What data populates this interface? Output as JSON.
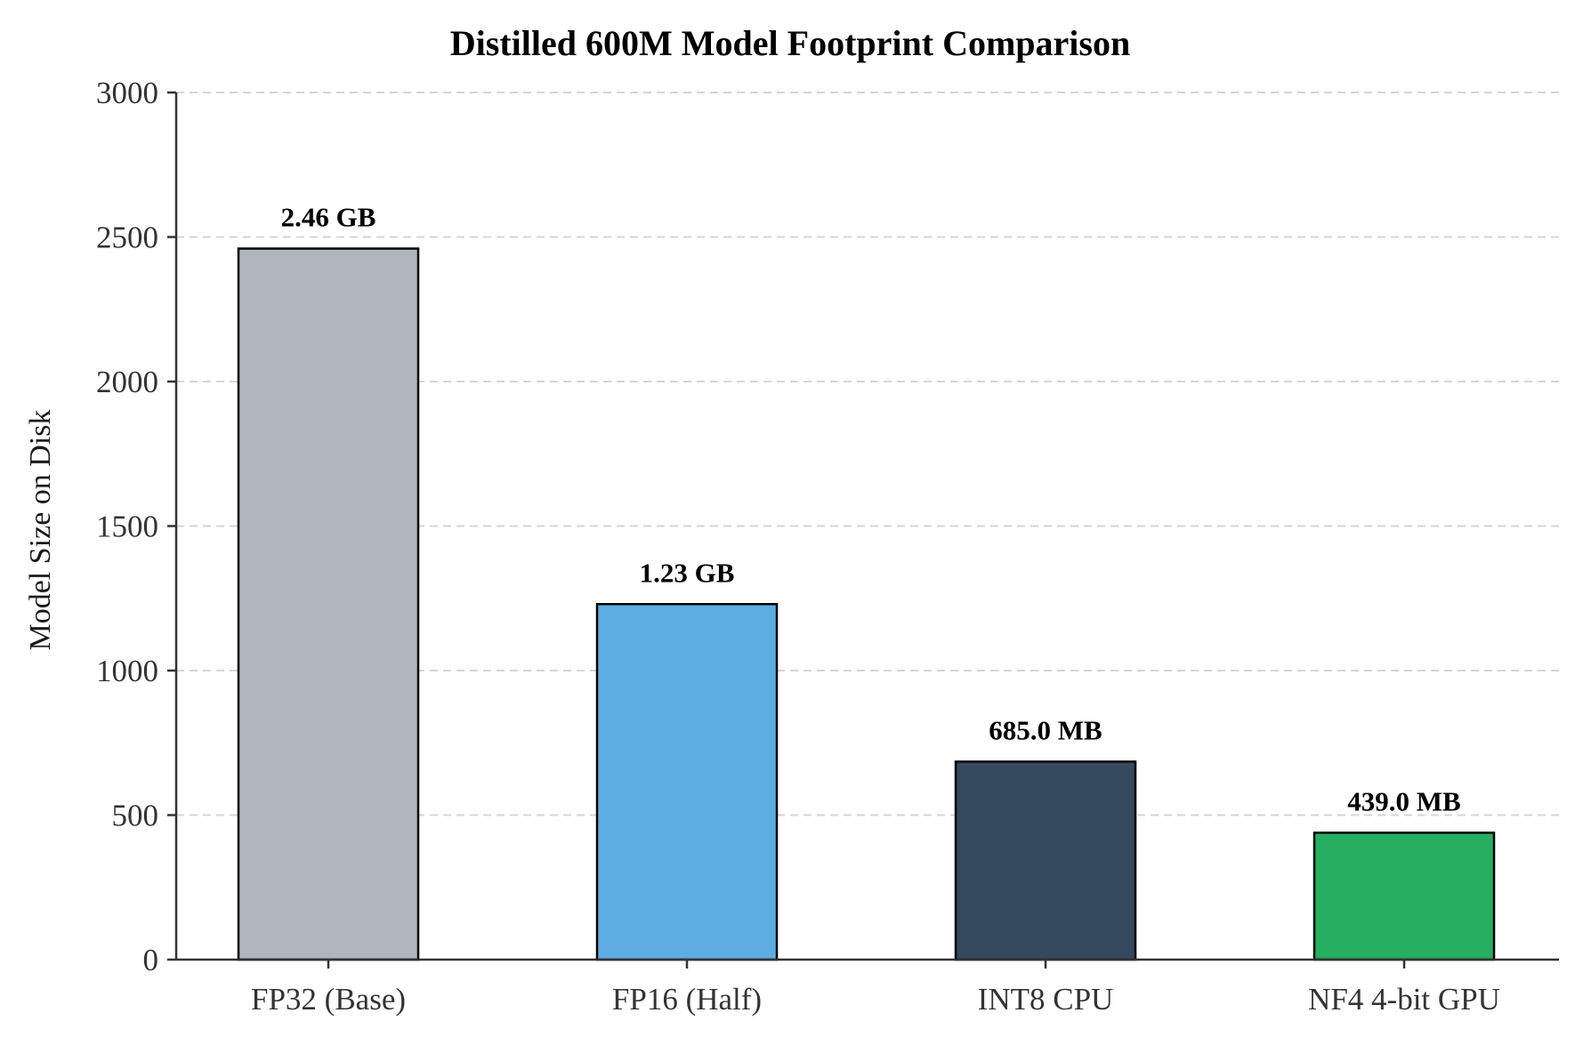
{
  "chart_data": {
    "type": "bar",
    "title": "Distilled 600M Model Footprint Comparison",
    "xlabel": "",
    "ylabel": "Model Size on Disk",
    "categories": [
      "FP32 (Base)",
      "FP16 (Half)",
      "INT8 CPU",
      "NF4 4-bit GPU"
    ],
    "values": [
      2460,
      1230,
      685,
      439
    ],
    "data_labels": [
      "2.46 GB",
      "1.23 GB",
      "685.0 MB",
      "439.0 MB"
    ],
    "colors": [
      "#aeb6bf",
      "#5dade2",
      "#34495e",
      "#27ae60"
    ],
    "ylim": [
      0,
      3000
    ],
    "yticks": [
      0,
      500,
      1000,
      1500,
      2000,
      2500,
      3000
    ],
    "grid": "y-dashed",
    "legend": "none"
  }
}
